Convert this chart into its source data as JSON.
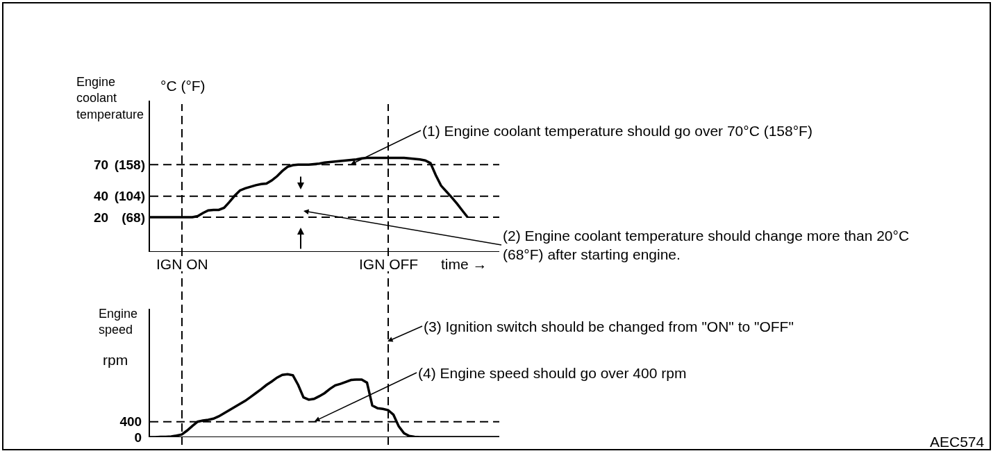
{
  "chart_data": [
    {
      "type": "line",
      "ylabel": "Engine coolant temperature",
      "xlabel": "time →",
      "color": "#000000",
      "tick_labels": "y",
      "categories": [
        null,
        null,
        null,
        null,
        null,
        null,
        null,
        null,
        null,
        null,
        null,
        null,
        null,
        null,
        null,
        null,
        null,
        null,
        null,
        null,
        null,
        null,
        null,
        null,
        null,
        null,
        null,
        null,
        null,
        null,
        null,
        null,
        null,
        null,
        null,
        null,
        null,
        null,
        null,
        null,
        null,
        null,
        null,
        null,
        null,
        null,
        null,
        null,
        null,
        null,
        null,
        null,
        null,
        null,
        null,
        null,
        null,
        null,
        null,
        null,
        null,
        null,
        null,
        null,
        null,
        null,
        null
      ],
      "values": [
        20,
        20,
        20,
        20,
        20,
        20,
        20,
        20,
        20,
        21,
        24,
        26.5,
        27,
        27,
        29,
        34.5,
        40.5,
        45.5,
        47.5,
        49,
        50.5,
        51.5,
        52,
        55,
        59,
        64,
        68,
        69.5,
        70,
        70,
        70,
        70.5,
        71,
        72,
        72.5,
        73,
        73.5,
        74,
        74.5,
        75,
        76,
        76.5,
        76.5,
        76.5,
        76.5,
        76.5,
        76.5,
        76.5,
        76.5,
        76,
        75.5,
        75,
        74,
        71.5,
        60,
        50,
        44.5,
        39,
        33,
        26.5,
        20,
        null,
        null,
        null,
        null,
        null,
        null
      ],
      "ylim": [
        -13,
        131
      ],
      "yticks": [
        20,
        40,
        70
      ],
      "y2lim": [
        8.6,
        267.8
      ],
      "y2ticks": [
        {
          "value": 68,
          "label": "(68)"
        },
        {
          "value": 104,
          "label": "(104)"
        },
        {
          "value": 158,
          "label": "(158)"
        }
      ],
      "ref_lines": [
        {
          "axis": "y",
          "value": 70,
          "line_style": "dashed"
        },
        {
          "axis": "y",
          "value": 40,
          "line_style": "dashed"
        },
        {
          "axis": "y",
          "value": 20,
          "line_style": "dashed"
        }
      ],
      "annotations": [
        "°C (°F)",
        "(1) Engine coolant temperature should go over 70°C (158°F)",
        "(2) Engine coolant temperature should change more than 20°C (68°F) after starting engine.",
        "IGN ON",
        "IGN OFF"
      ]
    },
    {
      "type": "line",
      "ylabel": "Engine speed",
      "color": "#000000",
      "tick_labels": "y",
      "categories": [
        null,
        null,
        null,
        null,
        null,
        null,
        null,
        null,
        null,
        null,
        null,
        null,
        null,
        null,
        null,
        null,
        null,
        null,
        null,
        null,
        null,
        null,
        null,
        null,
        null,
        null,
        null,
        null,
        null,
        null,
        null,
        null,
        null,
        null,
        null,
        null,
        null,
        null,
        null,
        null,
        null,
        null,
        null,
        null,
        null,
        null,
        null,
        null,
        null,
        null,
        null,
        null,
        null,
        null,
        null,
        null,
        null,
        null,
        null,
        null,
        null,
        null,
        null,
        null,
        null,
        null,
        null
      ],
      "values": [
        0,
        0,
        10,
        10,
        20,
        40,
        70,
        170,
        290,
        400,
        430,
        450,
        480,
        540,
        620,
        700,
        780,
        860,
        940,
        1040,
        1140,
        1240,
        1350,
        1440,
        1540,
        1610,
        1630,
        1600,
        1350,
        1030,
        970,
        990,
        1060,
        1140,
        1250,
        1340,
        1380,
        1430,
        1480,
        1490,
        1490,
        1410,
        820,
        750,
        730,
        700,
        580,
        280,
        100,
        30,
        10,
        0,
        0,
        0,
        0,
        0,
        0,
        0,
        0,
        0,
        0,
        0,
        0,
        0,
        0,
        0,
        0
      ],
      "ylim": [
        0,
        3320
      ],
      "yticks": [
        0,
        400
      ],
      "ref_lines": [
        {
          "axis": "y",
          "value": 400,
          "line_style": "dashed"
        }
      ],
      "annotations": [
        "rpm",
        "(3) Ignition switch should be changed from \"ON\" to \"OFF\"",
        "(4) Engine speed should go over 400 rpm",
        "AEC574"
      ]
    }
  ]
}
